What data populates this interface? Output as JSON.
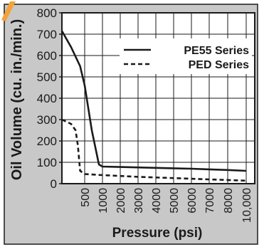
{
  "chart_data": {
    "type": "line",
    "xlabel": "Pressure (psi)",
    "ylabel": "Oil Volume (cu. in./min.)",
    "x_ticks": [
      "500",
      "1000",
      "2000",
      "3000",
      "4000",
      "5000",
      "6000",
      "7000",
      "8000",
      "10,000"
    ],
    "y_ticks": [
      0,
      100,
      200,
      300,
      400,
      500,
      600,
      700,
      800
    ],
    "ylim": [
      0,
      800
    ],
    "grid": true,
    "legend_position": "top-right",
    "series": [
      {
        "name": "PE55 Series",
        "style": "solid",
        "color": "#1a1a1a",
        "points": [
          {
            "x": "0",
            "y": 715
          },
          {
            "x": "200",
            "y": 640
          },
          {
            "x": "400",
            "y": 550
          },
          {
            "x": "500",
            "y": 460
          },
          {
            "x": "700",
            "y": 250
          },
          {
            "x": "900",
            "y": 90
          },
          {
            "x": "1000",
            "y": 80
          },
          {
            "x": "2000",
            "y": 78
          },
          {
            "x": "3000",
            "y": 76
          },
          {
            "x": "4000",
            "y": 74
          },
          {
            "x": "5000",
            "y": 72
          },
          {
            "x": "6000",
            "y": 70
          },
          {
            "x": "7000",
            "y": 67
          },
          {
            "x": "8000",
            "y": 64
          },
          {
            "x": "10,000",
            "y": 60
          }
        ]
      },
      {
        "name": "PED Series",
        "style": "dashed",
        "color": "#1a1a1a",
        "points": [
          {
            "x": "0",
            "y": 300
          },
          {
            "x": "200",
            "y": 280
          },
          {
            "x": "300",
            "y": 250
          },
          {
            "x": "350",
            "y": 180
          },
          {
            "x": "400",
            "y": 60
          },
          {
            "x": "500",
            "y": 45
          },
          {
            "x": "1000",
            "y": 40
          },
          {
            "x": "2000",
            "y": 36
          },
          {
            "x": "3000",
            "y": 32
          },
          {
            "x": "4000",
            "y": 29
          },
          {
            "x": "5000",
            "y": 26
          },
          {
            "x": "6000",
            "y": 23
          },
          {
            "x": "7000",
            "y": 20
          },
          {
            "x": "8000",
            "y": 17
          },
          {
            "x": "10,000",
            "y": 14
          }
        ]
      }
    ],
    "colors": {
      "plot_background": "#ffffff",
      "frame_background": "#c8c8c8",
      "accent_corner": "#f2a33a",
      "ink": "#1a1a1a"
    }
  }
}
